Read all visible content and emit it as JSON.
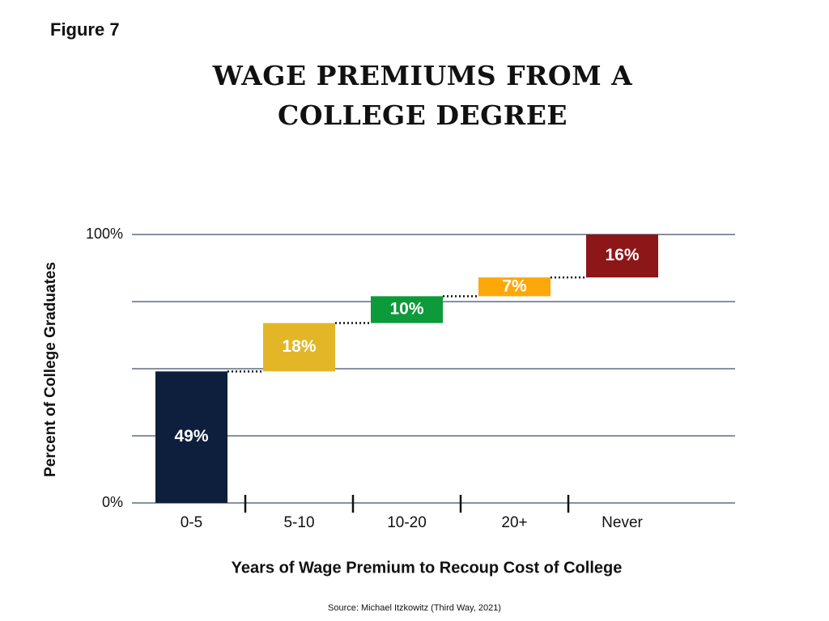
{
  "figure_label": "Figure 7",
  "chart_data": {
    "type": "waterfall",
    "title": [
      "WAGE PREMIUMS FROM A",
      "COLLEGE DEGREE"
    ],
    "y_label": "Percent of College Graduates",
    "x_label": "Years of Wage Premium to Recoup Cost of College",
    "categories": [
      "0-5",
      "5-10",
      "10-20",
      "20+",
      "Never"
    ],
    "values": [
      49,
      18,
      10,
      7,
      16
    ],
    "value_labels": [
      "49%",
      "18%",
      "10%",
      "7%",
      "16%"
    ],
    "colors": [
      "#0e1f3d",
      "#e2b627",
      "#0d9a3a",
      "#fca80a",
      "#8d1619"
    ],
    "ylim": [
      0,
      100
    ],
    "yticks": [
      {
        "value": 0,
        "label": "0%"
      },
      {
        "value": 100,
        "label": "100%"
      }
    ],
    "grid_values": [
      0,
      25,
      50,
      75,
      100
    ],
    "source": "Source: Michael Itzkowitz (Third Way, 2021)"
  }
}
